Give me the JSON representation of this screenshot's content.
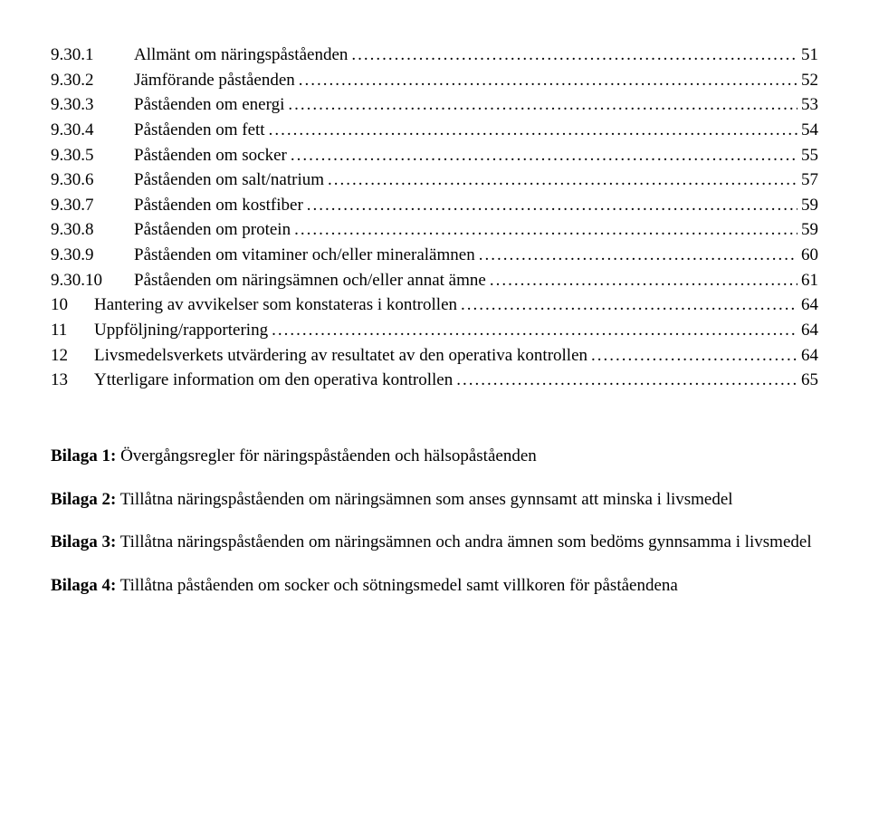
{
  "toc": {
    "sub": [
      {
        "num": "9.30.1",
        "title": "Allmänt om näringspåståenden",
        "page": "51"
      },
      {
        "num": "9.30.2",
        "title": "Jämförande påståenden",
        "page": "52"
      },
      {
        "num": "9.30.3",
        "title": "Påståenden om energi",
        "page": "53"
      },
      {
        "num": "9.30.4",
        "title": "Påståenden om fett",
        "page": "54"
      },
      {
        "num": "9.30.5",
        "title": "Påståenden om socker",
        "page": "55"
      },
      {
        "num": "9.30.6",
        "title": "Påståenden om salt/natrium",
        "page": "57"
      },
      {
        "num": "9.30.7",
        "title": "Påståenden om kostfiber",
        "page": "59"
      },
      {
        "num": "9.30.8",
        "title": "Påståenden om protein",
        "page": "59"
      },
      {
        "num": "9.30.9",
        "title": "Påståenden om vitaminer och/eller mineralämnen",
        "page": "60"
      },
      {
        "num": "9.30.10",
        "title": "Påståenden om näringsämnen och/eller annat ämne",
        "page": "61"
      }
    ],
    "top": [
      {
        "num": "10",
        "title": "Hantering av avvikelser  som konstateras i kontrollen",
        "page": "64"
      },
      {
        "num": "11",
        "title": "Uppföljning/rapportering",
        "page": "64"
      },
      {
        "num": "12",
        "title": "Livsmedelsverkets utvärdering av  resultatet av den operativa kontrollen",
        "page": "64"
      },
      {
        "num": "13",
        "title": "Ytterligare information om den operativa kontrollen",
        "page": "65"
      }
    ]
  },
  "appendices": [
    {
      "label": "Bilaga 1:",
      "text": " Övergångsregler för näringspåståenden och hälsopåståenden"
    },
    {
      "label": "Bilaga 2:",
      "text": " Tillåtna näringspåståenden om näringsämnen som anses gynnsamt att minska i livsmedel"
    },
    {
      "label": "Bilaga 3:",
      "text": " Tillåtna näringspåståenden om näringsämnen och andra ämnen som bedöms gynnsamma i livsmedel"
    },
    {
      "label": "Bilaga 4:",
      "text": " Tillåtna påståenden om socker och sötningsmedel samt villkoren för påståendena"
    }
  ]
}
